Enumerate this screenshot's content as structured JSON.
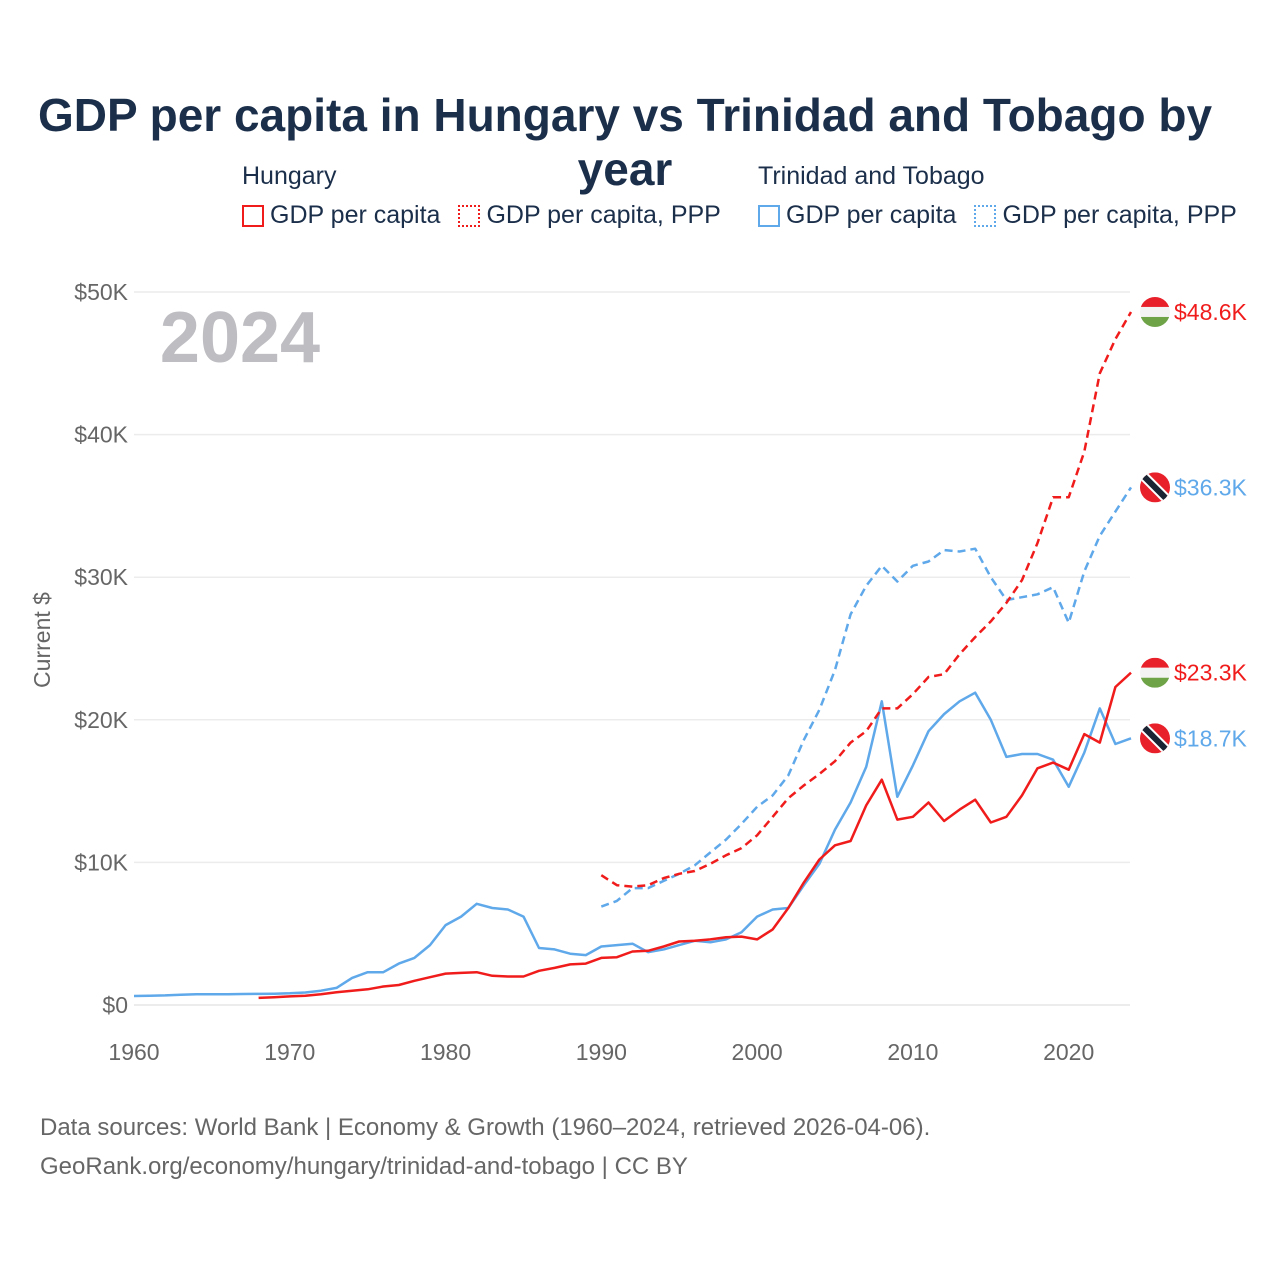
{
  "title": "GDP per capita in Hungary vs Trinidad and Tobago by year",
  "legend": {
    "groups": [
      {
        "name": "Hungary",
        "items": [
          "GDP per capita",
          "GDP per capita, PPP"
        ],
        "color": "#f01c1c"
      },
      {
        "name": "Trinidad and Tobago",
        "items": [
          "GDP per capita",
          "GDP per capita, PPP"
        ],
        "color": "#5fa8ea"
      }
    ]
  },
  "year_label": "2024",
  "end_labels": {
    "hu_ppp": "$48.6K",
    "tt_ppp": "$36.3K",
    "hu_gdp": "$23.3K",
    "tt_gdp": "$18.7K"
  },
  "source": {
    "line1": "Data sources: World Bank | Economy & Growth (1960–2024, retrieved 2026-04-06).",
    "line2": "GeoRank.org/economy/hungary/trinidad-and-tobago | CC BY"
  },
  "chart_data": {
    "type": "line",
    "title": "GDP per capita in Hungary vs Trinidad and Tobago by year",
    "xlabel": "",
    "ylabel": "Current $",
    "xlim": [
      1960,
      2024
    ],
    "ylim": [
      0,
      50000
    ],
    "xticks": [
      1960,
      1970,
      1980,
      1990,
      2000,
      2010,
      2020
    ],
    "xtick_labels": [
      "1960",
      "1970",
      "1980",
      "1990",
      "2000",
      "2010",
      "2020"
    ],
    "yticks": [
      0,
      10000,
      20000,
      30000,
      40000,
      50000
    ],
    "ytick_labels": [
      "$0",
      "$10K",
      "$20K",
      "$30K",
      "$40K",
      "$50K"
    ],
    "grid": true,
    "legend_position": "top",
    "series": [
      {
        "name": "Hungary GDP per capita",
        "key": "hu_gdp",
        "color": "#f01c1c",
        "dashed": false,
        "start": 1968,
        "values_k": [
          0.5,
          0.55,
          0.6,
          0.65,
          0.75,
          0.9,
          1.0,
          1.1,
          1.3,
          1.4,
          1.7,
          1.95,
          2.2,
          2.25,
          2.3,
          2.05,
          2.0,
          2.0,
          2.4,
          2.6,
          2.85,
          2.9,
          3.3,
          3.35,
          3.75,
          3.8,
          4.1,
          4.45,
          4.5,
          4.6,
          4.75,
          4.8,
          4.6,
          5.3,
          6.8,
          8.6,
          10.2,
          11.2,
          11.5,
          14.0,
          15.8,
          13.0,
          13.2,
          14.2,
          12.9,
          13.7,
          14.4,
          12.8,
          13.2,
          14.7,
          16.6,
          17.0,
          16.5,
          19.0,
          18.4,
          22.3,
          23.3
        ]
      },
      {
        "name": "Hungary GDP per capita, PPP",
        "key": "hu_ppp",
        "color": "#f01c1c",
        "dashed": true,
        "start": 1990,
        "values_k": [
          9.1,
          8.4,
          8.3,
          8.4,
          8.9,
          9.2,
          9.4,
          9.9,
          10.5,
          11.0,
          11.9,
          13.2,
          14.5,
          15.4,
          16.2,
          17.1,
          18.4,
          19.2,
          20.8,
          20.8,
          21.8,
          23.0,
          23.2,
          24.6,
          25.8,
          26.9,
          28.2,
          29.8,
          32.4,
          35.6,
          35.6,
          38.8,
          44.3,
          46.7,
          48.6
        ]
      },
      {
        "name": "Trinidad and Tobago GDP per capita",
        "key": "tt_gdp",
        "color": "#5fa8ea",
        "dashed": false,
        "start": 1960,
        "values_k": [
          0.63,
          0.65,
          0.67,
          0.72,
          0.75,
          0.76,
          0.76,
          0.77,
          0.78,
          0.79,
          0.82,
          0.88,
          1.0,
          1.2,
          1.9,
          2.3,
          2.3,
          2.9,
          3.3,
          4.2,
          5.6,
          6.2,
          7.1,
          6.8,
          6.7,
          6.2,
          4.0,
          3.9,
          3.6,
          3.5,
          4.1,
          4.2,
          4.3,
          3.7,
          3.9,
          4.2,
          4.5,
          4.4,
          4.6,
          5.1,
          6.2,
          6.7,
          6.8,
          8.4,
          9.9,
          12.3,
          14.2,
          16.7,
          21.3,
          14.6,
          16.8,
          19.2,
          20.4,
          21.3,
          21.9,
          20.0,
          17.4,
          17.6,
          17.6,
          17.2,
          15.3,
          17.7,
          20.8,
          18.3,
          18.7
        ]
      },
      {
        "name": "Trinidad and Tobago GDP per capita, PPP",
        "key": "tt_ppp",
        "color": "#5fa8ea",
        "dashed": true,
        "start": 1990,
        "values_k": [
          6.9,
          7.3,
          8.2,
          8.2,
          8.7,
          9.2,
          9.8,
          10.7,
          11.6,
          12.7,
          13.9,
          14.7,
          16.1,
          18.6,
          20.7,
          23.5,
          27.4,
          29.4,
          30.8,
          29.7,
          30.8,
          31.1,
          31.9,
          31.8,
          32.0,
          30.0,
          28.4,
          28.6,
          28.8,
          29.3,
          26.8,
          30.4,
          32.9,
          34.6,
          36.3
        ]
      }
    ]
  }
}
